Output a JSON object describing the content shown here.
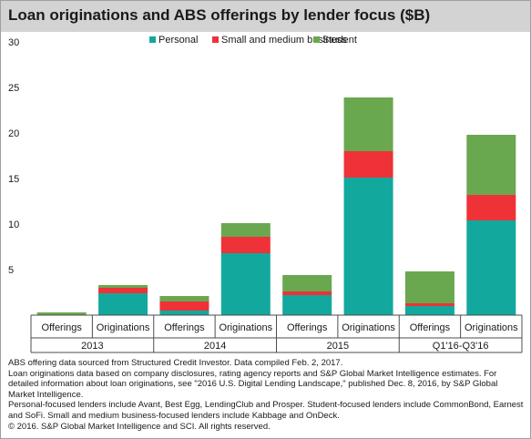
{
  "title": "Loan originations and ABS offerings by lender focus ($B)",
  "chart_data": {
    "type": "bar",
    "stacked": true,
    "ylim": [
      0,
      30
    ],
    "yticks": [
      5,
      10,
      15,
      20,
      25,
      30
    ],
    "grid": false,
    "legend_position": "top",
    "categories": [
      "Offerings",
      "Originations",
      "Offerings",
      "Originations",
      "Offerings",
      "Originations",
      "Offerings",
      "Originations"
    ],
    "groups": [
      {
        "label": "2013",
        "categories": [
          "Offerings",
          "Originations"
        ]
      },
      {
        "label": "2014",
        "categories": [
          "Offerings",
          "Originations"
        ]
      },
      {
        "label": "2015",
        "categories": [
          "Offerings",
          "Originations"
        ]
      },
      {
        "label": "Q1'16-Q3'16",
        "categories": [
          "Offerings",
          "Originations"
        ]
      }
    ],
    "series": [
      {
        "name": "Personal",
        "color": "#13a89e",
        "values": [
          0.0,
          2.4,
          0.5,
          6.8,
          2.2,
          15.1,
          1.0,
          10.4
        ]
      },
      {
        "name": "Small and medium business",
        "color": "#ee3237",
        "values": [
          0.0,
          0.6,
          1.0,
          1.8,
          0.4,
          2.9,
          0.3,
          2.8
        ]
      },
      {
        "name": "Student",
        "color": "#6aa84f",
        "values": [
          0.3,
          0.3,
          0.6,
          1.5,
          1.8,
          5.9,
          3.5,
          6.6
        ]
      }
    ]
  },
  "footnotes": [
    "ABS offering data sourced from Structured Credit Investor. Data compiled Feb. 2, 2017.",
    "Loan originations data based on company disclosures, rating agency reports and S&P Global Market Intelligence estimates. For detailed information about loan originations, see \"2016 U.S. Digital Lending Landscape,\" published Dec. 8, 2016, by S&P Global Market Intelligence.",
    "Personal-focused lenders include Avant, Best Egg, LendingClub and Prosper. Student-focused lenders include CommonBond, Earnest and SoFi. Small and medium business-focused lenders include Kabbage and OnDeck.",
    "© 2016. S&P Global Market Intelligence and SCI. All rights reserved."
  ]
}
